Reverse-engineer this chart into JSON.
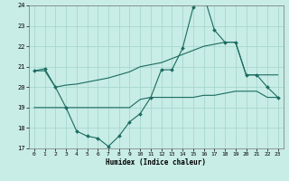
{
  "xlabel": "Humidex (Indice chaleur)",
  "xlim": [
    -0.5,
    23.5
  ],
  "ylim": [
    17,
    24
  ],
  "yticks": [
    17,
    18,
    19,
    20,
    21,
    22,
    23,
    24
  ],
  "xticks": [
    0,
    1,
    2,
    3,
    4,
    5,
    6,
    7,
    8,
    9,
    10,
    11,
    12,
    13,
    14,
    15,
    16,
    17,
    18,
    19,
    20,
    21,
    22,
    23
  ],
  "background_color": "#c8ece6",
  "grid_color": "#a0d4cc",
  "line_color": "#1a6b60",
  "line1_x": [
    0,
    1,
    2,
    3,
    4,
    5,
    6,
    7,
    8,
    9,
    10,
    11,
    12,
    13,
    14,
    15,
    16,
    17,
    18,
    19,
    20,
    21,
    22,
    23
  ],
  "line1_y": [
    20.8,
    20.9,
    20.0,
    19.0,
    17.85,
    17.6,
    17.5,
    17.1,
    17.6,
    18.3,
    18.7,
    19.5,
    20.85,
    20.85,
    21.9,
    23.9,
    24.5,
    22.8,
    22.2,
    22.2,
    20.6,
    20.6,
    20.0,
    19.5
  ],
  "line2_x": [
    0,
    1,
    2,
    3,
    4,
    5,
    6,
    7,
    8,
    9,
    10,
    11,
    12,
    13,
    14,
    15,
    16,
    17,
    18,
    19,
    20,
    21,
    22,
    23
  ],
  "line2_y": [
    20.8,
    20.8,
    20.0,
    20.1,
    20.15,
    20.25,
    20.35,
    20.45,
    20.6,
    20.75,
    21.0,
    21.1,
    21.2,
    21.4,
    21.6,
    21.8,
    22.0,
    22.1,
    22.2,
    22.2,
    20.6,
    20.6,
    20.6,
    20.6
  ],
  "line3_x": [
    0,
    1,
    2,
    3,
    4,
    5,
    6,
    7,
    8,
    9,
    10,
    11,
    12,
    13,
    14,
    15,
    16,
    17,
    18,
    19,
    20,
    21,
    22,
    23
  ],
  "line3_y": [
    19.0,
    19.0,
    19.0,
    19.0,
    19.0,
    19.0,
    19.0,
    19.0,
    19.0,
    19.0,
    19.4,
    19.5,
    19.5,
    19.5,
    19.5,
    19.5,
    19.6,
    19.6,
    19.7,
    19.8,
    19.8,
    19.8,
    19.5,
    19.5
  ]
}
